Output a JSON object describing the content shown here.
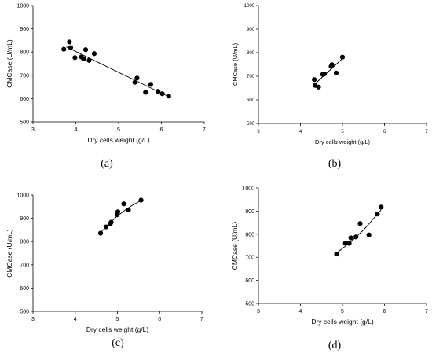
{
  "chart_data": [
    {
      "type": "scatter",
      "panel": "a",
      "caption": "(a)",
      "xlabel": "Dry cells weight (g/L)",
      "ylabel": "CMCase (U/mL)",
      "xlim": [
        3,
        7
      ],
      "ylim": [
        500,
        1000
      ],
      "xticks": [
        "3",
        "4",
        "5",
        "6",
        "7"
      ],
      "yticks": [
        "500",
        "600",
        "700",
        "800",
        "900",
        "1000"
      ],
      "points": [
        {
          "x": 3.72,
          "y": 812
        },
        {
          "x": 3.85,
          "y": 843
        },
        {
          "x": 3.88,
          "y": 819
        },
        {
          "x": 3.98,
          "y": 776
        },
        {
          "x": 4.13,
          "y": 779
        },
        {
          "x": 4.18,
          "y": 771
        },
        {
          "x": 4.23,
          "y": 810
        },
        {
          "x": 4.31,
          "y": 764
        },
        {
          "x": 4.43,
          "y": 793
        },
        {
          "x": 5.38,
          "y": 670
        },
        {
          "x": 5.43,
          "y": 688
        },
        {
          "x": 5.63,
          "y": 627
        },
        {
          "x": 5.75,
          "y": 661
        },
        {
          "x": 5.92,
          "y": 631
        },
        {
          "x": 6.02,
          "y": 621
        },
        {
          "x": 6.17,
          "y": 611
        }
      ],
      "fit_line": [
        [
          3.78,
          822
        ],
        [
          6.12,
          613
        ]
      ]
    },
    {
      "type": "scatter",
      "panel": "b",
      "caption": "(b)",
      "xlabel": "Dry cells weight (g/L)",
      "ylabel": "CMCase (U/mL)",
      "xlim": [
        3,
        7
      ],
      "ylim": [
        500,
        1000
      ],
      "xticks": [
        "3",
        "4",
        "5",
        "6",
        "7"
      ],
      "yticks": [
        "500",
        "600",
        "700",
        "800",
        "900",
        "1000"
      ],
      "points": [
        {
          "x": 4.33,
          "y": 686
        },
        {
          "x": 4.35,
          "y": 661
        },
        {
          "x": 4.43,
          "y": 654
        },
        {
          "x": 4.53,
          "y": 708
        },
        {
          "x": 4.57,
          "y": 710
        },
        {
          "x": 4.73,
          "y": 742
        },
        {
          "x": 4.75,
          "y": 749
        },
        {
          "x": 4.85,
          "y": 714
        },
        {
          "x": 5.0,
          "y": 781
        }
      ],
      "fit_line": [
        [
          4.33,
          665
        ],
        [
          5.0,
          775
        ]
      ]
    },
    {
      "type": "scatter",
      "panel": "c",
      "caption": "(c)",
      "xlabel": "Dry cells weight (g/L)",
      "ylabel": "CMCase (U/mL)",
      "xlim": [
        3,
        7
      ],
      "ylim": [
        500,
        1000
      ],
      "xticks": [
        "3",
        "4",
        "5",
        "6",
        "7"
      ],
      "yticks": [
        "500",
        "600",
        "700",
        "800",
        "900",
        "1000"
      ],
      "points": [
        {
          "x": 4.6,
          "y": 836
        },
        {
          "x": 4.73,
          "y": 863
        },
        {
          "x": 4.83,
          "y": 876
        },
        {
          "x": 4.85,
          "y": 883
        },
        {
          "x": 4.99,
          "y": 915
        },
        {
          "x": 5.01,
          "y": 928
        },
        {
          "x": 5.15,
          "y": 962
        },
        {
          "x": 5.26,
          "y": 936
        },
        {
          "x": 5.56,
          "y": 978
        }
      ],
      "fit_line": [
        [
          4.6,
          838
        ],
        [
          4.8,
          877
        ],
        [
          5.0,
          910
        ],
        [
          5.2,
          938
        ],
        [
          5.4,
          961
        ],
        [
          5.56,
          976
        ]
      ]
    },
    {
      "type": "scatter",
      "panel": "d",
      "caption": "(d)",
      "xlabel": "Dry cells weight (g/L)",
      "ylabel": "CMCase (U/mL)",
      "xlim": [
        3,
        7
      ],
      "ylim": [
        500,
        1000
      ],
      "xticks": [
        "3",
        "4",
        "5",
        "6",
        "7"
      ],
      "yticks": [
        "500",
        "600",
        "700",
        "800",
        "900",
        "1000"
      ],
      "points": [
        {
          "x": 4.86,
          "y": 714
        },
        {
          "x": 5.07,
          "y": 761
        },
        {
          "x": 5.16,
          "y": 760
        },
        {
          "x": 5.2,
          "y": 784
        },
        {
          "x": 5.32,
          "y": 788
        },
        {
          "x": 5.42,
          "y": 846
        },
        {
          "x": 5.63,
          "y": 797
        },
        {
          "x": 5.83,
          "y": 887
        },
        {
          "x": 5.92,
          "y": 917
        }
      ],
      "fit_line": [
        [
          4.86,
          718
        ],
        [
          5.2,
          767
        ],
        [
          5.5,
          818
        ],
        [
          5.92,
          905
        ]
      ]
    }
  ]
}
